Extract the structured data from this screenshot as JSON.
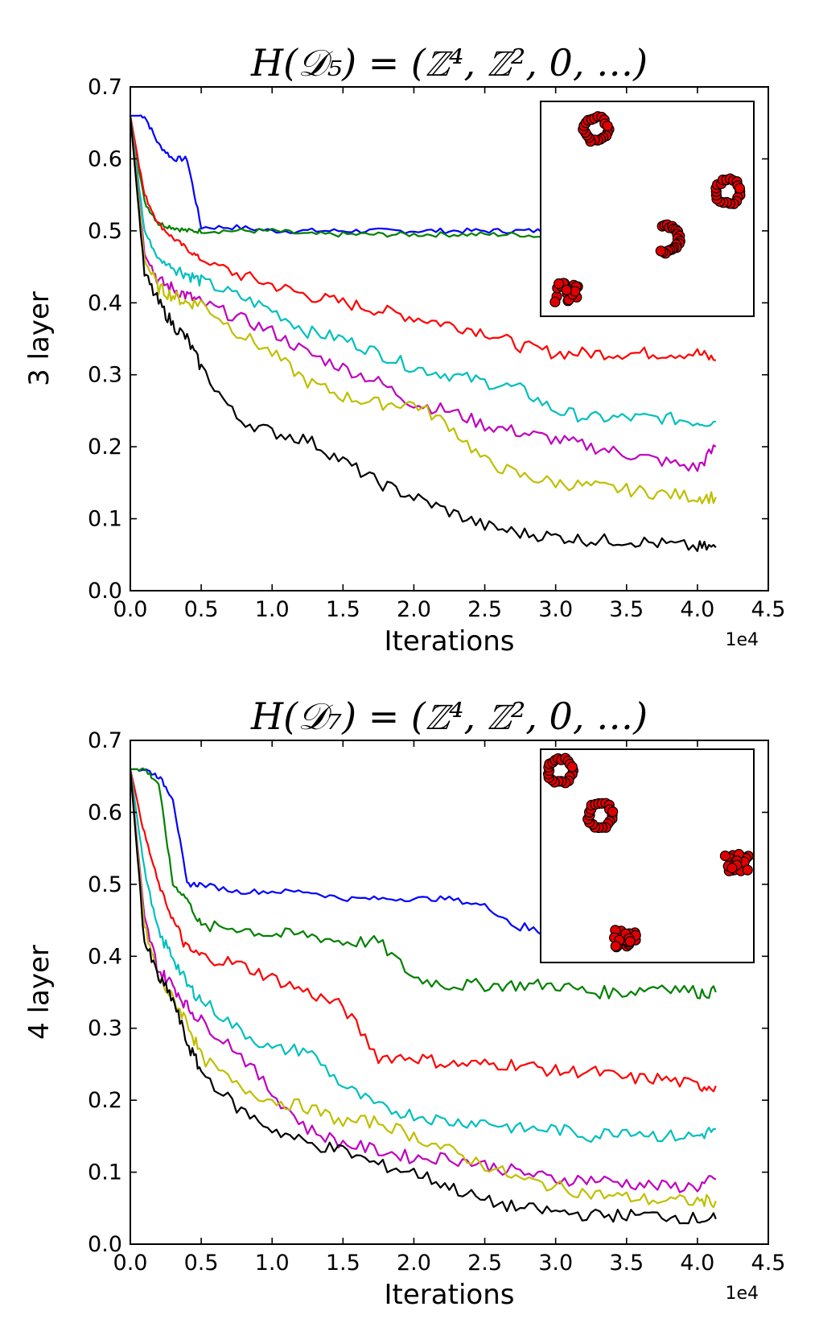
{
  "chart_data": [
    {
      "type": "line",
      "title": "H(𝒟₅) = (ℤ⁴, ℤ², 0, …)",
      "xlabel": "Iterations",
      "x_offset_label": "1e4",
      "ylabel": "3 layer",
      "xlim": [
        0,
        4.5
      ],
      "ylim": [
        0,
        0.7
      ],
      "x_ticks": [
        "0.0",
        "0.5",
        "1.0",
        "1.5",
        "2.0",
        "2.5",
        "3.0",
        "3.5",
        "4.0",
        "4.5"
      ],
      "y_ticks": [
        "0.0",
        "0.1",
        "0.2",
        "0.3",
        "0.4",
        "0.5",
        "0.6",
        "0.7"
      ],
      "x": [
        0.0,
        0.1,
        0.2,
        0.3,
        0.4,
        0.5,
        0.75,
        1.0,
        1.25,
        1.5,
        1.75,
        2.0,
        2.25,
        2.5,
        2.75,
        3.0,
        3.25,
        3.5,
        3.75,
        4.0,
        4.13
      ],
      "series": [
        {
          "color": "#0000ff",
          "values": [
            0.66,
            0.66,
            0.62,
            0.6,
            0.6,
            0.505,
            0.505,
            0.5,
            0.5,
            0.5,
            0.5,
            0.5,
            0.5,
            0.5,
            0.5,
            0.5,
            null,
            null,
            null,
            null,
            null
          ]
        },
        {
          "color": "#008000",
          "values": [
            0.66,
            0.54,
            0.51,
            0.505,
            0.5,
            0.5,
            0.5,
            0.5,
            0.495,
            0.495,
            0.495,
            0.495,
            0.495,
            0.495,
            0.495,
            0.49,
            null,
            null,
            null,
            null,
            null
          ]
        },
        {
          "color": "#ff0000",
          "values": [
            0.66,
            0.55,
            0.51,
            0.49,
            0.475,
            0.46,
            0.44,
            0.425,
            0.41,
            0.4,
            0.39,
            0.38,
            0.37,
            0.36,
            0.34,
            0.33,
            0.33,
            0.33,
            0.33,
            0.33,
            0.32
          ]
        },
        {
          "color": "#00bfbf",
          "values": [
            0.66,
            0.5,
            0.46,
            0.45,
            0.44,
            0.43,
            0.41,
            0.39,
            0.36,
            0.35,
            0.33,
            0.31,
            0.3,
            0.29,
            0.28,
            0.25,
            0.24,
            0.24,
            0.24,
            0.235,
            0.235
          ]
        },
        {
          "color": "#bf00bf",
          "values": [
            0.66,
            0.47,
            0.43,
            0.42,
            0.41,
            0.4,
            0.38,
            0.36,
            0.33,
            0.31,
            0.29,
            0.26,
            0.25,
            0.23,
            0.22,
            0.21,
            0.2,
            0.19,
            0.18,
            0.17,
            0.2
          ]
        },
        {
          "color": "#bfbf00",
          "values": [
            0.66,
            0.46,
            0.42,
            0.41,
            0.4,
            0.4,
            0.36,
            0.33,
            0.29,
            0.27,
            0.26,
            0.26,
            0.23,
            0.18,
            0.16,
            0.15,
            0.145,
            0.14,
            0.135,
            0.13,
            0.13
          ]
        },
        {
          "color": "#000000",
          "values": [
            0.66,
            0.44,
            0.4,
            0.37,
            0.35,
            0.31,
            0.24,
            0.22,
            0.21,
            0.18,
            0.15,
            0.13,
            0.11,
            0.09,
            0.08,
            0.075,
            0.07,
            0.07,
            0.065,
            0.06,
            0.06
          ]
        }
      ],
      "inset": {
        "point_color": "#e00000",
        "clusters": [
          {
            "shape": "ring",
            "cx": 0.26,
            "cy": 0.13
          },
          {
            "shape": "ring",
            "cx": 0.88,
            "cy": 0.42
          },
          {
            "shape": "arc",
            "cx": 0.59,
            "cy": 0.64
          },
          {
            "shape": "blob",
            "cx": 0.12,
            "cy": 0.89
          }
        ]
      }
    },
    {
      "type": "line",
      "title": "H(𝒟₇) = (ℤ⁴, ℤ², 0, …)",
      "xlabel": "Iterations",
      "x_offset_label": "1e4",
      "ylabel": "4 layer",
      "xlim": [
        0,
        4.5
      ],
      "ylim": [
        0,
        0.7
      ],
      "x_ticks": [
        "0.0",
        "0.5",
        "1.0",
        "1.5",
        "2.0",
        "2.5",
        "3.0",
        "3.5",
        "4.0",
        "4.5"
      ],
      "y_ticks": [
        "0.0",
        "0.1",
        "0.2",
        "0.3",
        "0.4",
        "0.5",
        "0.6",
        "0.7"
      ],
      "x": [
        0.0,
        0.1,
        0.2,
        0.3,
        0.4,
        0.5,
        0.75,
        1.0,
        1.25,
        1.5,
        1.75,
        2.0,
        2.25,
        2.5,
        2.75,
        3.0,
        3.25,
        3.5,
        3.75,
        4.0,
        4.13
      ],
      "series": [
        {
          "color": "#0000ff",
          "values": [
            0.66,
            0.66,
            0.65,
            0.62,
            0.5,
            0.5,
            0.49,
            0.49,
            0.49,
            0.48,
            0.48,
            0.48,
            0.48,
            0.47,
            0.44,
            0.43,
            null,
            null,
            null,
            null,
            null
          ]
        },
        {
          "color": "#008000",
          "values": [
            0.66,
            0.66,
            0.64,
            0.5,
            0.48,
            0.44,
            0.44,
            0.43,
            0.43,
            0.42,
            0.42,
            0.37,
            0.36,
            0.36,
            0.36,
            0.36,
            0.35,
            0.35,
            0.36,
            0.35,
            0.35
          ]
        },
        {
          "color": "#ff0000",
          "values": [
            0.66,
            0.57,
            0.5,
            0.45,
            0.41,
            0.4,
            0.39,
            0.37,
            0.35,
            0.33,
            0.26,
            0.26,
            0.25,
            0.25,
            0.25,
            0.24,
            0.24,
            0.23,
            0.23,
            0.22,
            0.22
          ]
        },
        {
          "color": "#00bfbf",
          "values": [
            0.66,
            0.52,
            0.43,
            0.4,
            0.36,
            0.34,
            0.3,
            0.27,
            0.27,
            0.22,
            0.19,
            0.18,
            0.17,
            0.17,
            0.16,
            0.16,
            0.15,
            0.16,
            0.15,
            0.15,
            0.16
          ]
        },
        {
          "color": "#bf00bf",
          "values": [
            0.66,
            0.45,
            0.38,
            0.36,
            0.33,
            0.31,
            0.27,
            0.21,
            0.16,
            0.14,
            0.13,
            0.12,
            0.12,
            0.11,
            0.1,
            0.09,
            0.09,
            0.085,
            0.08,
            0.08,
            0.09
          ]
        },
        {
          "color": "#bfbf00",
          "values": [
            0.66,
            0.44,
            0.37,
            0.34,
            0.31,
            0.26,
            0.22,
            0.2,
            0.19,
            0.17,
            0.17,
            0.15,
            0.13,
            0.11,
            0.09,
            0.08,
            0.07,
            0.065,
            0.06,
            0.06,
            0.06
          ]
        },
        {
          "color": "#000000",
          "values": [
            0.66,
            0.42,
            0.37,
            0.34,
            0.28,
            0.24,
            0.19,
            0.16,
            0.14,
            0.13,
            0.11,
            0.1,
            0.08,
            0.06,
            0.05,
            0.045,
            0.04,
            0.04,
            0.04,
            0.035,
            0.035
          ]
        }
      ],
      "inset": {
        "point_color": "#e00000",
        "clusters": [
          {
            "shape": "ring",
            "cx": 0.09,
            "cy": 0.1
          },
          {
            "shape": "ring",
            "cx": 0.28,
            "cy": 0.31
          },
          {
            "shape": "blob",
            "cx": 0.92,
            "cy": 0.53
          },
          {
            "shape": "blob",
            "cx": 0.4,
            "cy": 0.89
          }
        ]
      }
    }
  ]
}
